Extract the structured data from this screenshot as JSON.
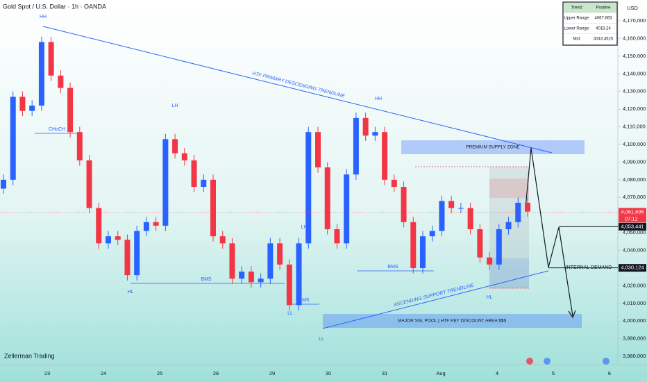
{
  "chart_data": {
    "type": "candlestick",
    "title": "Gold Spot / U.S. Dollar · 1h · OANDA",
    "currency": "USD",
    "watermark": "Zellerman Trading",
    "up_color": "#2962ff",
    "down_color": "#f23645",
    "categories": [
      "23",
      "24",
      "25",
      "28",
      "29",
      "30",
      "31",
      "Aug",
      "4",
      "5",
      "6"
    ],
    "ylim": [
      3976.5,
      4181.8
    ],
    "yticks": [
      {
        "value": 4170,
        "label": "4,170,000"
      },
      {
        "value": 4160,
        "label": "4,160,000"
      },
      {
        "value": 4150,
        "label": "4,150,000"
      },
      {
        "value": 4140,
        "label": "4,140,000"
      },
      {
        "value": 4130,
        "label": "4,130,000"
      },
      {
        "value": 4120,
        "label": "4,120,000"
      },
      {
        "value": 4110,
        "label": "4,110,000"
      },
      {
        "value": 4100,
        "label": "4,100,000"
      },
      {
        "value": 4090,
        "label": "4,090,000"
      },
      {
        "value": 4080,
        "label": "4,080,000"
      },
      {
        "value": 4070,
        "label": "4,070,000"
      },
      {
        "value": 4060,
        "label": "4,060,000"
      },
      {
        "value": 4050,
        "label": "4,050,000"
      },
      {
        "value": 4040,
        "label": "4,040,000"
      },
      {
        "value": 4030,
        "label": "4,030,000"
      },
      {
        "value": 4020,
        "label": "4,020,000"
      },
      {
        "value": 4010,
        "label": "4,010,000"
      },
      {
        "value": 4000,
        "label": "4,000,000"
      },
      {
        "value": 3990,
        "label": "3,990,000"
      },
      {
        "value": 3980,
        "label": "3,980,000"
      }
    ],
    "open": [
      4075,
      4080,
      4127,
      4119,
      4122,
      4158,
      4139,
      4132,
      4107,
      4091,
      4064,
      4044,
      4048,
      4046,
      4026,
      4051,
      4056,
      4054,
      4103,
      4095,
      4091,
      4076,
      4080,
      4048,
      4044,
      4024,
      4028,
      4022,
      4024,
      4044,
      4032,
      4009,
      4044,
      4107,
      4087,
      4052,
      4044,
      4083,
      4115,
      4105,
      4107,
      4080,
      4076,
      4056,
      4030,
      4048,
      4051,
      4068,
      4064,
      4064,
      4052,
      4036,
      4032,
      4052,
      4056,
      4067
    ],
    "high": [
      4083,
      4130,
      4130,
      4125,
      4161,
      4161,
      4142,
      4135,
      4110,
      4094,
      4067,
      4051,
      4051,
      4049,
      4054,
      4059,
      4059,
      4106,
      4106,
      4098,
      4094,
      4083,
      4083,
      4051,
      4047,
      4031,
      4031,
      4027,
      4047,
      4047,
      4035,
      4047,
      4110,
      4110,
      4090,
      4055,
      4086,
      4118,
      4118,
      4110,
      4110,
      4083,
      4079,
      4059,
      4051,
      4054,
      4071,
      4071,
      4067,
      4067,
      4055,
      4039,
      4055,
      4059,
      4070,
      4070
    ],
    "low": [
      4072,
      4077,
      4116,
      4116,
      4119,
      4136,
      4129,
      4104,
      4088,
      4061,
      4041,
      4041,
      4043,
      4023,
      4023,
      4048,
      4051,
      4051,
      4092,
      4088,
      4073,
      4073,
      4045,
      4041,
      4021,
      4021,
      4019,
      4019,
      4021,
      4029,
      4006,
      4006,
      4041,
      4084,
      4049,
      4041,
      4041,
      4080,
      4102,
      4102,
      4077,
      4073,
      4053,
      4027,
      4027,
      4045,
      4048,
      4061,
      4061,
      4049,
      4033,
      4029,
      4029,
      4049,
      4053,
      4059
    ],
    "close": [
      4080,
      4127,
      4119,
      4122,
      4158,
      4139,
      4132,
      4107,
      4091,
      4064,
      4044,
      4048,
      4046,
      4026,
      4051,
      4056,
      4054,
      4103,
      4095,
      4091,
      4076,
      4080,
      4048,
      4044,
      4024,
      4028,
      4022,
      4024,
      4044,
      4032,
      4009,
      4044,
      4107,
      4087,
      4052,
      4044,
      4083,
      4115,
      4105,
      4107,
      4080,
      4076,
      4056,
      4030,
      4048,
      4051,
      4068,
      4064,
      4064,
      4052,
      4036,
      4032,
      4052,
      4056,
      4067,
      4062
    ],
    "price_labels": [
      {
        "value": 4061.695,
        "label": "4,061,695"
      },
      {
        "value": 4053.441,
        "label": "4,053,441"
      },
      {
        "value": 4030.124,
        "label": "4,030,124"
      }
    ],
    "countdown": "07:12",
    "info_box": [
      [
        "Trend:",
        "Positive"
      ],
      [
        "Upper Range:",
        "4067.663"
      ],
      [
        "Lower Range:",
        "4019.24"
      ],
      [
        "Mid:",
        "4043.4525"
      ]
    ],
    "annotations": [
      "HH",
      "CHoCH",
      "LH",
      "HL",
      "BMS",
      "LL",
      "BMS",
      "LH",
      "LL",
      "HH",
      "BMS",
      "HL",
      "INTERNAL DEMAND"
    ],
    "trendline_labels": [
      "HTF PRIMARY DESCENDING TRENDLINE",
      "ASCENDING SUPPORT TRENDLINE"
    ],
    "zones": [
      "PREMIUM SUPPLY ZONE",
      "MAJOR SSL POOL | HTF KEY DISCOUNT AREA $$$"
    ]
  }
}
